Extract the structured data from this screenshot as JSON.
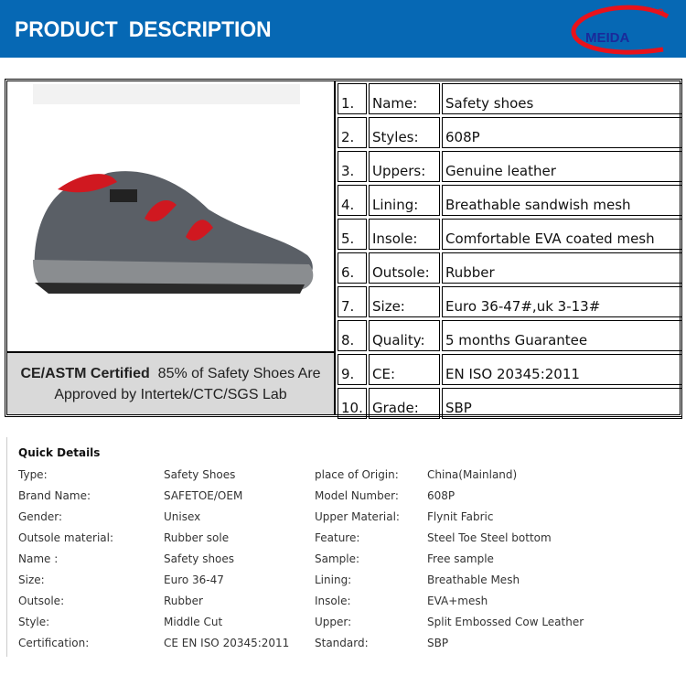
{
  "header": {
    "title": "PRODUCT  DESCRIPTION",
    "logo_text": "MEIDA",
    "brand_color": "#0668b4"
  },
  "certification": {
    "bold": "CE/ASTM Certified",
    "text": "85% of Safety Shoes Are Approved by Intertek/CTC/SGS Lab"
  },
  "specs": [
    {
      "num": "1.",
      "label": "Name:",
      "value": "Safety shoes"
    },
    {
      "num": "2.",
      "label": "Styles:",
      "value": "608P"
    },
    {
      "num": "3.",
      "label": "Uppers:",
      "value": "Genuine leather"
    },
    {
      "num": "4.",
      "label": "Lining:",
      "value": "Breathable sandwish mesh"
    },
    {
      "num": "5.",
      "label": "Insole:",
      "value": "Comfortable EVA coated mesh"
    },
    {
      "num": "6.",
      "label": "Outsole:",
      "value": "Rubber"
    },
    {
      "num": "7.",
      "label": "Size:",
      "value": "Euro 36-47#,uk 3-13#"
    },
    {
      "num": "8.",
      "label": "Quality:",
      "value": "5 months Guarantee"
    },
    {
      "num": "9.",
      "label": "CE:",
      "value": "EN ISO 20345:2011"
    },
    {
      "num": "10.",
      "label": "Grade:",
      "value": "SBP"
    }
  ],
  "quick_details": {
    "title": "Quick Details",
    "rows": [
      [
        "Type:",
        "Safety Shoes",
        "place of Origin:",
        "China(Mainland)"
      ],
      [
        "Brand Name:",
        "SAFETOE/OEM",
        "Model Number:",
        "608P"
      ],
      [
        "Gender:",
        "Unisex",
        "Upper Material:",
        "Flynit Fabric"
      ],
      [
        "Outsole material:",
        "Rubber sole",
        "Feature:",
        "Steel Toe  Steel bottom"
      ],
      [
        "Name :",
        "Safety shoes",
        "Sample:",
        "Free sample"
      ],
      [
        "Size:",
        "Euro 36-47",
        "Lining:",
        "Breathable Mesh"
      ],
      [
        "Outsole:",
        "Rubber",
        "Insole:",
        "EVA+mesh"
      ],
      [
        "Style:",
        "Middle Cut",
        "Upper:",
        "Split Embossed Cow Leather"
      ],
      [
        "Certification:",
        "CE EN ISO 20345:2011",
        "Standard:",
        "SBP"
      ]
    ]
  }
}
